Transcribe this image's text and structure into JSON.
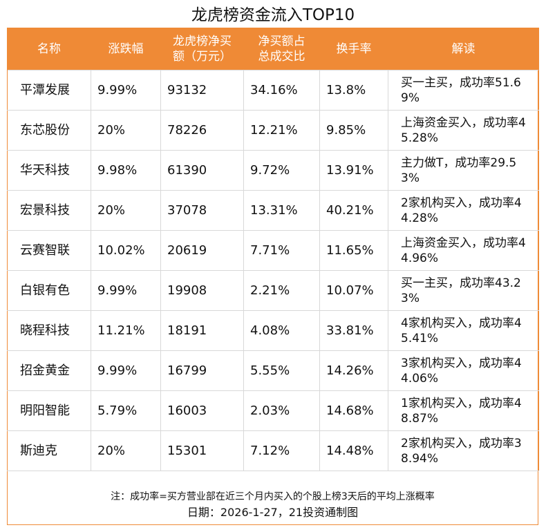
{
  "title": "龙虎榜资金流入TOP10",
  "columns": [
    "名称",
    "涨跌幅",
    "龙虎榜净买额（万元）",
    "净买额占总成交比",
    "换手率",
    "解读"
  ],
  "columns_display": {
    "c0": [
      "名称"
    ],
    "c1": [
      "涨跌幅"
    ],
    "c2": [
      "龙虎榜净买",
      "额（万元）"
    ],
    "c3": [
      "净买额占",
      "总成交比"
    ],
    "c4": [
      "换手率"
    ],
    "c5": [
      "解读"
    ]
  },
  "rows": [
    {
      "name": "平潭发展",
      "change": "9.99%",
      "net_buy": "93132",
      "ratio": "34.16%",
      "turnover": "13.8%",
      "note": "买一主买，成功率51.69%"
    },
    {
      "name": "东芯股份",
      "change": "20%",
      "net_buy": "78226",
      "ratio": "12.21%",
      "turnover": "9.85%",
      "note": "上海资金买入，成功率45.28%"
    },
    {
      "name": "华天科技",
      "change": "9.98%",
      "net_buy": "61390",
      "ratio": "9.72%",
      "turnover": "13.91%",
      "note": "主力做T，成功率29.53%"
    },
    {
      "name": "宏景科技",
      "change": "20%",
      "net_buy": "37078",
      "ratio": "13.31%",
      "turnover": "40.21%",
      "note": "2家机构买入，成功率44.28%"
    },
    {
      "name": "云赛智联",
      "change": "10.02%",
      "net_buy": "20619",
      "ratio": "7.71%",
      "turnover": "11.65%",
      "note": "上海资金买入，成功率44.96%"
    },
    {
      "name": "白银有色",
      "change": "9.99%",
      "net_buy": "19908",
      "ratio": "2.21%",
      "turnover": "10.07%",
      "note": "买一主买，成功率43.23%"
    },
    {
      "name": "晓程科技",
      "change": "11.21%",
      "net_buy": "18191",
      "ratio": "4.08%",
      "turnover": "33.81%",
      "note": "4家机构买入，成功率45.41%"
    },
    {
      "name": "招金黄金",
      "change": "9.99%",
      "net_buy": "16799",
      "ratio": "5.55%",
      "turnover": "14.26%",
      "note": "3家机构买入，成功率44.06%"
    },
    {
      "name": "明阳智能",
      "change": "5.79%",
      "net_buy": "16003",
      "ratio": "2.03%",
      "turnover": "14.68%",
      "note": "1家机构买入，成功率48.87%"
    },
    {
      "name": "斯迪克",
      "change": "20%",
      "net_buy": "15301",
      "ratio": "7.12%",
      "turnover": "14.48%",
      "note": "2家机构买入，成功率38.94%"
    }
  ],
  "footer": {
    "note": "注：成功率=买方营业部在近三个月内买入的个股上榜3天后的平均上涨概率",
    "date": "日期：2026-1-27，21投资通制图"
  },
  "colors": {
    "accent": "#ef8a36",
    "grid": "#d8d8d8",
    "text": "#111111"
  }
}
